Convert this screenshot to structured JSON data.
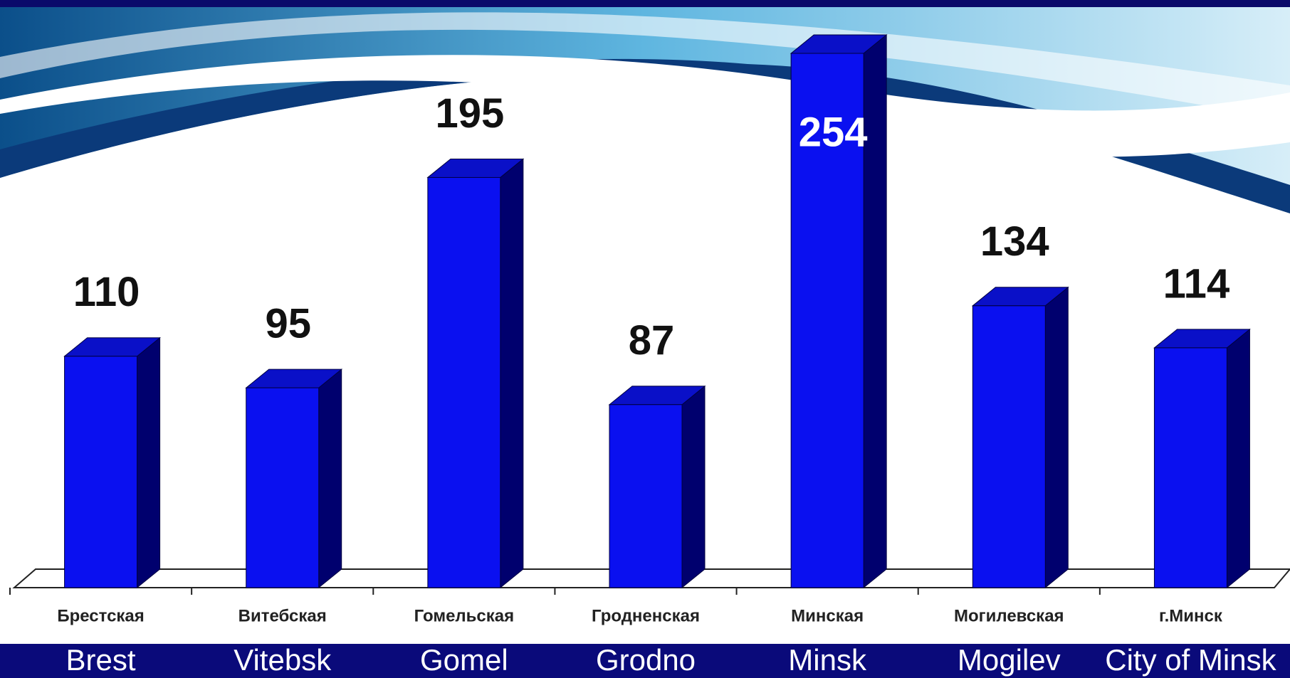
{
  "chart_data": {
    "type": "bar3d",
    "categories": [
      "Брестская",
      "Витебская",
      "Гомельская",
      "Гродненская",
      "Минская",
      "Могилевская",
      "г.Минск"
    ],
    "category_translations": [
      "Brest",
      "Vitebsk",
      "Gomel",
      "Grodno",
      "Minsk",
      "Mogilev",
      "City of Minsk"
    ],
    "values": [
      110,
      95,
      195,
      87,
      254,
      134,
      114
    ],
    "color": "#0a10f0"
  }
}
